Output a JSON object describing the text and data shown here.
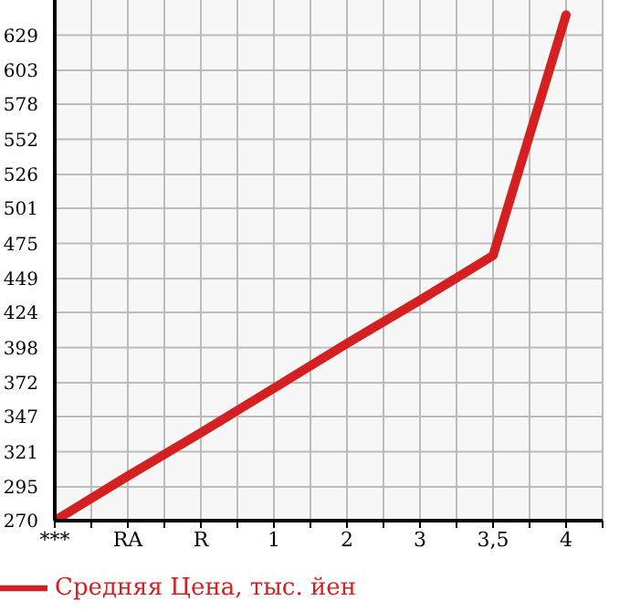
{
  "chart_data": {
    "type": "line",
    "categories": [
      "***",
      "RA",
      "R",
      "1",
      "2",
      "3",
      "3,5",
      "4"
    ],
    "series": [
      {
        "name": "Средняя Цена, тыс. йен",
        "color": "#d42020",
        "values": [
          270,
          303,
          335,
          368,
          401,
          433,
          466,
          644
        ]
      }
    ],
    "ylim": [
      270,
      655
    ],
    "yticks": [
      270,
      295,
      321,
      347,
      372,
      398,
      424,
      449,
      475,
      501,
      526,
      552,
      578,
      603,
      629
    ],
    "grid": true,
    "legend": "bottom left",
    "marker": "none",
    "line_style": "solid"
  }
}
